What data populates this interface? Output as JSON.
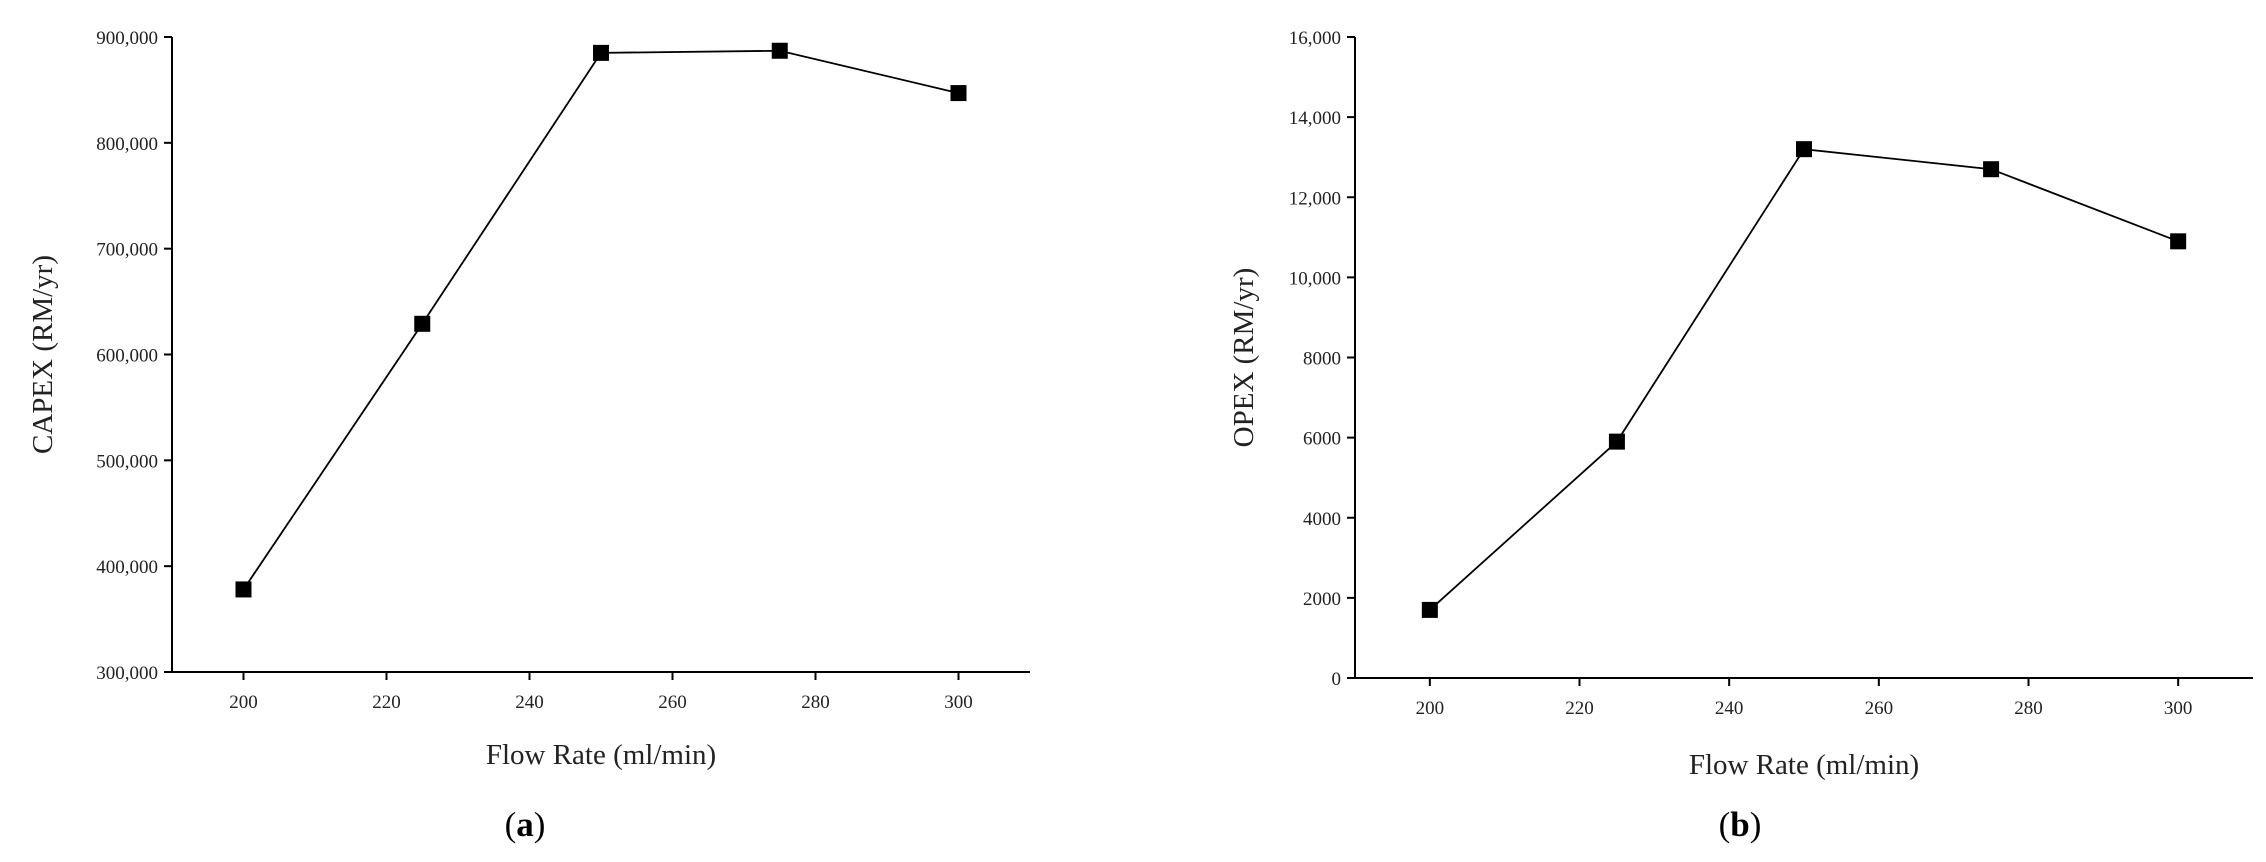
{
  "chart_data": [
    {
      "type": "line",
      "panel_label": "a",
      "title": "",
      "xlabel": "Flow Rate (ml/min)",
      "ylabel": "CAPEX (RM/yr)",
      "xlim": [
        190,
        310
      ],
      "ylim": [
        300000,
        900000
      ],
      "x_ticks": [
        200,
        220,
        240,
        260,
        280,
        300
      ],
      "x_tick_labels": [
        "200",
        "220",
        "240",
        "260",
        "280",
        "300"
      ],
      "y_ticks": [
        300000,
        400000,
        500000,
        600000,
        700000,
        800000,
        900000
      ],
      "y_tick_labels": [
        "300,000",
        "400,000",
        "500,000",
        "600,000",
        "700,000",
        "800,000",
        "900,000"
      ],
      "grid": false,
      "legend": "none",
      "series": [
        {
          "x": [
            200,
            225,
            250,
            275,
            300
          ],
          "values": [
            378000,
            629000,
            885000,
            887000,
            847000
          ],
          "marker": "square",
          "color": "#000000"
        }
      ]
    },
    {
      "type": "line",
      "panel_label": "b",
      "title": "",
      "xlabel": "Flow Rate (ml/min)",
      "ylabel": "OPEX (RM/yr)",
      "xlim": [
        190,
        310
      ],
      "ylim": [
        0,
        16000
      ],
      "x_ticks": [
        200,
        220,
        240,
        260,
        280,
        300
      ],
      "x_tick_labels": [
        "200",
        "220",
        "240",
        "260",
        "280",
        "300"
      ],
      "y_ticks": [
        0,
        2000,
        4000,
        6000,
        8000,
        10000,
        12000,
        14000,
        16000
      ],
      "y_tick_labels": [
        "0",
        "2000",
        "4000",
        "6000",
        "8000",
        "10,000",
        "12,000",
        "14,000",
        "16,000"
      ],
      "grid": false,
      "legend": "none",
      "series": [
        {
          "x": [
            200,
            225,
            250,
            275,
            300
          ],
          "values": [
            1700,
            5900,
            13200,
            12700,
            10900
          ],
          "marker": "square",
          "color": "#000000"
        }
      ]
    }
  ]
}
